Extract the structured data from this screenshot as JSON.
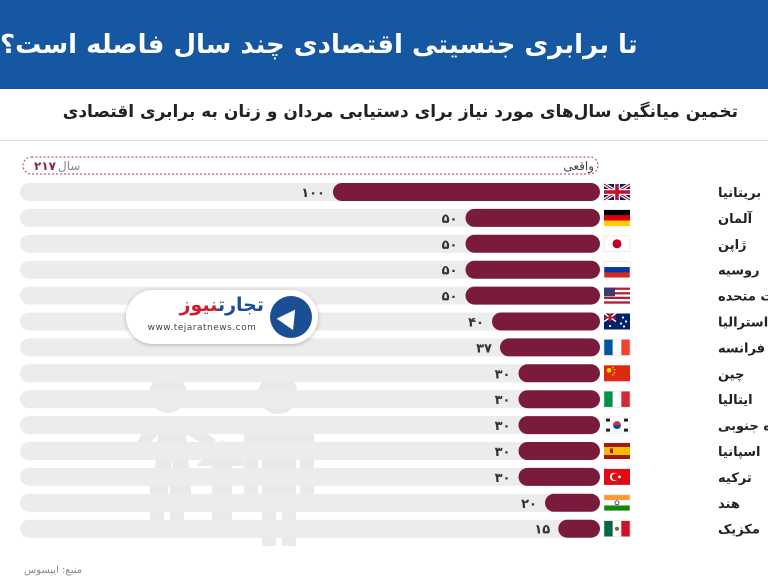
{
  "header": {
    "title": "تا برابری جنسیتی اقتصادی چند سال فاصله است؟",
    "subtitle": "تخمین میانگین سال‌های مورد نیاز برای دستیابی مردان و زنان به برابری اقتصادی"
  },
  "colors": {
    "header_bg": "#1557a0",
    "bar": "#7a1b3e",
    "track": "#ececec",
    "actual_text": "#8b2350",
    "actual_border": "#b65b80"
  },
  "logo": {
    "name_part1": "تجارت",
    "name_part2": "نیوز",
    "url": "www.tejaratnews.com"
  },
  "source": "منبع: ایپسوس",
  "chart_data": {
    "type": "bar",
    "orientation": "horizontal",
    "categories": [
      "بریتانیا",
      "آلمان",
      "ژاپن",
      "روسیه",
      "ایالات متحده",
      "استرالیا",
      "فرانسه",
      "چین",
      "ایتالیا",
      "کره جنوبی",
      "اسپانیا",
      "ترکیه",
      "هند",
      "مکزیک"
    ],
    "values": [
      100,
      50,
      50,
      50,
      50,
      40,
      37,
      30,
      30,
      30,
      30,
      30,
      20,
      15
    ],
    "value_labels": [
      "۱۰۰",
      "۵۰",
      "۵۰",
      "۵۰",
      "۵۰",
      "۴۰",
      "۳۷",
      "۳۰",
      "۳۰",
      "۳۰",
      "۳۰",
      "۳۰",
      "۲۰",
      "۱۵"
    ],
    "flags": [
      "uk-flag-icon",
      "germany-flag-icon",
      "japan-flag-icon",
      "russia-flag-icon",
      "usa-flag-icon",
      "australia-flag-icon",
      "france-flag-icon",
      "china-flag-icon",
      "italy-flag-icon",
      "south-korea-flag-icon",
      "spain-flag-icon",
      "turkey-flag-icon",
      "india-flag-icon",
      "mexico-flag-icon"
    ],
    "actual": {
      "label": "واقعی",
      "value": 217,
      "value_text": "۲۱۷",
      "unit": "سال"
    },
    "xlim": [
      0,
      217
    ],
    "title": "",
    "xlabel": "",
    "ylabel": ""
  }
}
